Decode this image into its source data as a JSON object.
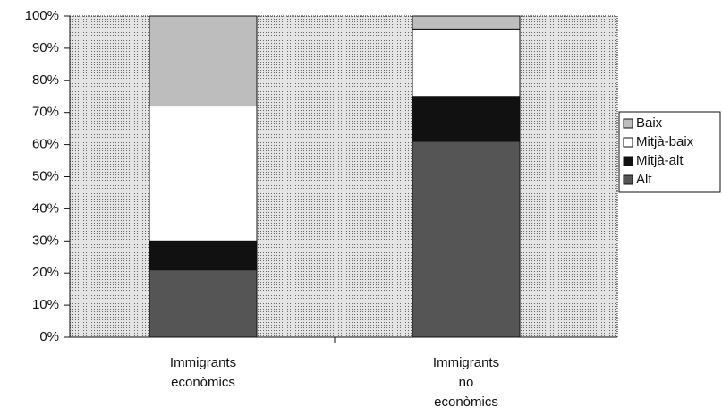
{
  "chart_data": {
    "type": "stacked_bar",
    "categories": [
      "Immigrants econòmics",
      "Immigrants no econòmics"
    ],
    "series": [
      {
        "name": "Alt",
        "color": "#555555",
        "values": [
          21,
          61
        ]
      },
      {
        "name": "Mitjà-alt",
        "color": "#111111",
        "values": [
          9,
          14
        ]
      },
      {
        "name": "Mitjà-baix",
        "color": "#ffffff",
        "values": [
          42,
          21
        ]
      },
      {
        "name": "Baix",
        "color": "#bdbdbd",
        "values": [
          28,
          4
        ]
      }
    ],
    "ylim": [
      0,
      100
    ],
    "yticks": [
      {
        "value": 0,
        "label": "0%"
      },
      {
        "value": 10,
        "label": "10%"
      },
      {
        "value": 20,
        "label": "20%"
      },
      {
        "value": 30,
        "label": "30%"
      },
      {
        "value": 40,
        "label": "40%"
      },
      {
        "value": 50,
        "label": "50%"
      },
      {
        "value": 60,
        "label": "60%"
      },
      {
        "value": 70,
        "label": "70%"
      },
      {
        "value": 80,
        "label": "80%"
      },
      {
        "value": 90,
        "label": "90%"
      },
      {
        "value": 100,
        "label": "100%"
      }
    ],
    "legend": "right"
  }
}
